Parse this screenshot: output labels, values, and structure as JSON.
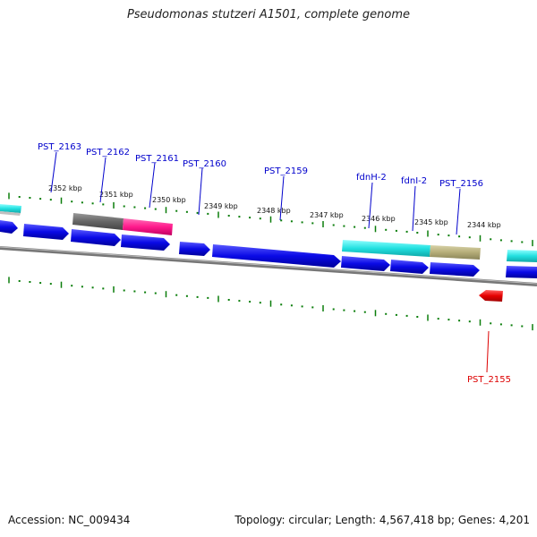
{
  "title": "Pseudomonas stutzeri A1501, complete genome",
  "footer": {
    "accession": "Accession: NC_009434",
    "summary": "Topology: circular; Length: 4,567,418 bp; Genes: 4,201"
  },
  "ticks": [
    {
      "label": "2352 kbp"
    },
    {
      "label": "2351 kbp"
    },
    {
      "label": "2350 kbp"
    },
    {
      "label": "2349 kbp"
    },
    {
      "label": "2348 kbp"
    },
    {
      "label": "2347 kbp"
    },
    {
      "label": "2346 kbp"
    },
    {
      "label": "2345 kbp"
    },
    {
      "label": "2344 kbp"
    }
  ],
  "gene_labels": [
    {
      "text": "PST_2163",
      "color": "#0000cc"
    },
    {
      "text": "PST_2162",
      "color": "#0000cc"
    },
    {
      "text": "PST_2161",
      "color": "#0000cc"
    },
    {
      "text": "PST_2160",
      "color": "#0000cc"
    },
    {
      "text": "PST_2159",
      "color": "#0000cc"
    },
    {
      "text": "fdnH-2",
      "color": "#0000cc"
    },
    {
      "text": "fdnI-2",
      "color": "#0000cc"
    },
    {
      "text": "PST_2156",
      "color": "#0000cc"
    },
    {
      "text": "PST_2155",
      "color": "#dd0000"
    }
  ],
  "colors": {
    "forward_gene": "#0a0ae6",
    "reverse_gene": "#e60000",
    "tick": "#0a7d0a",
    "backbone": "#777777",
    "feature_gray": "#666666",
    "feature_pink": "#ff1a8c",
    "feature_cyan": "#22e0e0",
    "feature_khaki": "#b5ad78"
  }
}
